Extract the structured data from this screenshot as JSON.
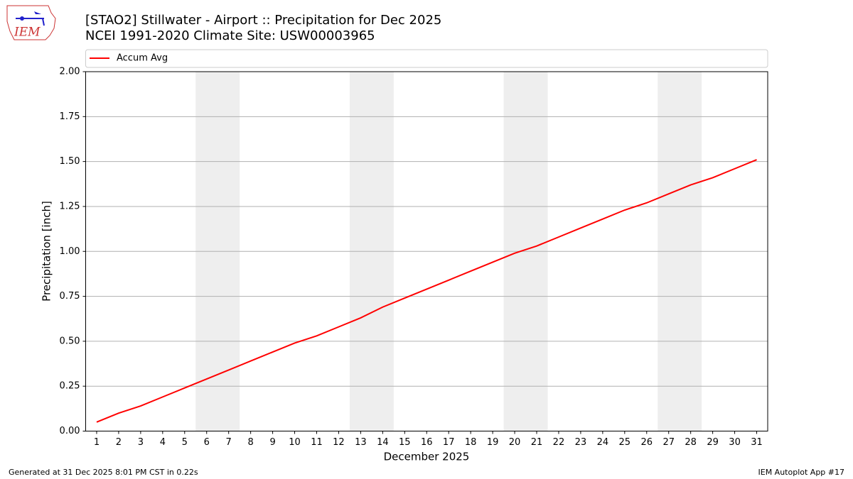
{
  "chart_data": {
    "type": "line",
    "title": "[STAO2] Stillwater - Airport :: Precipitation for Dec 2025",
    "subtitle": "NCEI 1991-2020 Climate Site: USW00003965",
    "x_label": "December 2025",
    "y_label": "Precipitation [inch]",
    "x": [
      1,
      2,
      3,
      4,
      5,
      6,
      7,
      8,
      9,
      10,
      11,
      12,
      13,
      14,
      15,
      16,
      17,
      18,
      19,
      20,
      21,
      22,
      23,
      24,
      25,
      26,
      27,
      28,
      29,
      30,
      31
    ],
    "series": [
      {
        "name": "Accum Avg",
        "color": "#ff0000",
        "values": [
          0.05,
          0.1,
          0.14,
          0.19,
          0.24,
          0.29,
          0.34,
          0.39,
          0.44,
          0.49,
          0.53,
          0.58,
          0.63,
          0.69,
          0.74,
          0.79,
          0.84,
          0.89,
          0.94,
          0.99,
          1.03,
          1.08,
          1.13,
          1.18,
          1.23,
          1.27,
          1.32,
          1.37,
          1.41,
          1.46,
          1.51
        ]
      }
    ],
    "shaded_spans": [
      [
        5.5,
        7.5
      ],
      [
        12.5,
        14.5
      ],
      [
        19.5,
        21.5
      ],
      [
        26.5,
        28.5
      ]
    ],
    "shade_color": "#eeeeee",
    "xlim": [
      0.5,
      31.5
    ],
    "xticks": [
      1,
      2,
      3,
      4,
      5,
      6,
      7,
      8,
      9,
      10,
      11,
      12,
      13,
      14,
      15,
      16,
      17,
      18,
      19,
      20,
      21,
      22,
      23,
      24,
      25,
      26,
      27,
      28,
      29,
      30,
      31
    ],
    "ylim": [
      0,
      2
    ],
    "yticks": [
      {
        "value": 0,
        "label": "0.00"
      },
      {
        "value": 0.25,
        "label": "0.25"
      },
      {
        "value": 0.5,
        "label": "0.50"
      },
      {
        "value": 0.75,
        "label": "0.75"
      },
      {
        "value": 1,
        "label": "1.00"
      },
      {
        "value": 1.25,
        "label": "1.25"
      },
      {
        "value": 1.5,
        "label": "1.50"
      },
      {
        "value": 1.75,
        "label": "1.75"
      },
      {
        "value": 2,
        "label": "2.00"
      }
    ],
    "grid": true,
    "legend": "top"
  },
  "logo_text": "IEM",
  "footer": {
    "left": "Generated at 31 Dec 2025 8:01 PM CST in 0.22s",
    "right": "IEM Autoplot App #17"
  }
}
